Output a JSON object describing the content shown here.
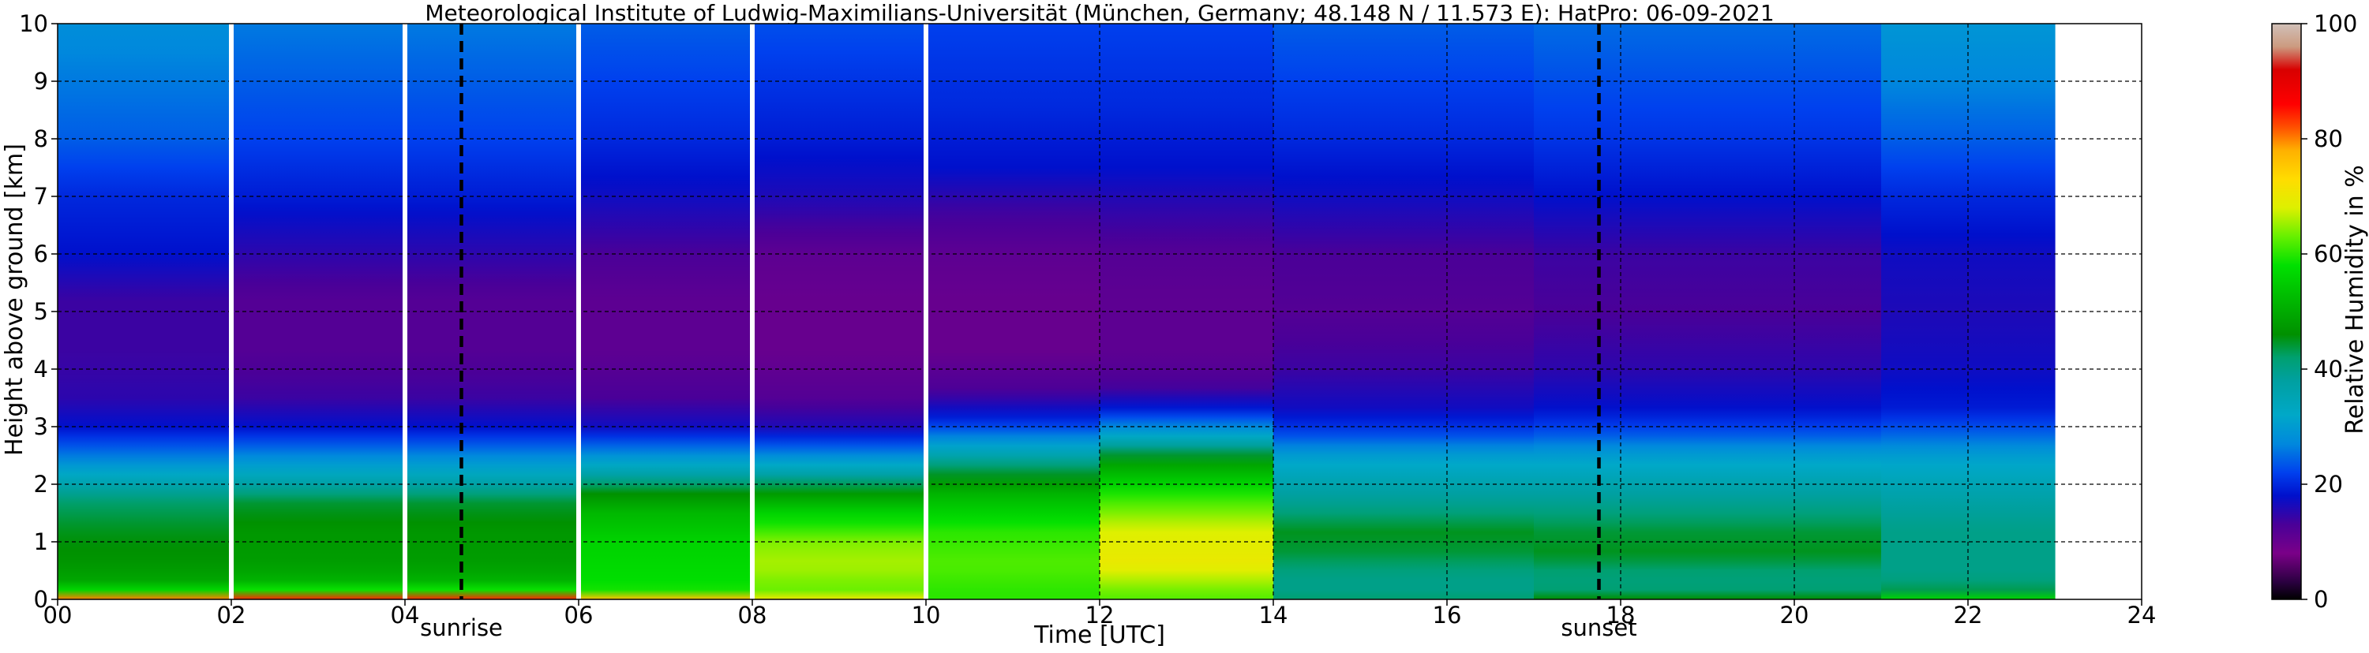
{
  "chart_data": {
    "type": "heatmap",
    "title": "Meteorological Institute of Ludwig-Maximilians-Universität (München, Germany; 48.148 N / 11.573 E):    HatPro: 06-09-2021",
    "xlabel": "Time [UTC]",
    "ylabel": "Height above ground [km]",
    "xlim": [
      0,
      24
    ],
    "ylim": [
      0,
      10
    ],
    "x_ticks": [
      {
        "value": 0,
        "label": "00"
      },
      {
        "value": 2,
        "label": "02"
      },
      {
        "value": 4,
        "label": "04"
      },
      {
        "value": 6,
        "label": "06"
      },
      {
        "value": 8,
        "label": "08"
      },
      {
        "value": 10,
        "label": "10"
      },
      {
        "value": 12,
        "label": "12"
      },
      {
        "value": 14,
        "label": "14"
      },
      {
        "value": 16,
        "label": "16"
      },
      {
        "value": 18,
        "label": "18"
      },
      {
        "value": 20,
        "label": "20"
      },
      {
        "value": 22,
        "label": "22"
      },
      {
        "value": 24,
        "label": "24"
      }
    ],
    "y_ticks": [
      {
        "value": 0,
        "label": "0"
      },
      {
        "value": 1,
        "label": "1"
      },
      {
        "value": 2,
        "label": "2"
      },
      {
        "value": 3,
        "label": "3"
      },
      {
        "value": 4,
        "label": "4"
      },
      {
        "value": 5,
        "label": "5"
      },
      {
        "value": 6,
        "label": "6"
      },
      {
        "value": 7,
        "label": "7"
      },
      {
        "value": 8,
        "label": "8"
      },
      {
        "value": 9,
        "label": "9"
      },
      {
        "value": 10,
        "label": "10"
      }
    ],
    "grid": true,
    "data_end_time": 23.0,
    "data_gaps": [
      2.0,
      4.0,
      6.0,
      8.0,
      10.0
    ],
    "events": [
      {
        "label": "sunrise",
        "time": 4.65
      },
      {
        "label": "sunset",
        "time": 17.75
      }
    ],
    "humidity_profiles": [
      {
        "t0": 0.0,
        "t1": 2.0,
        "height": [
          0,
          0.05,
          0.12,
          0.25,
          0.6,
          1.2,
          1.7,
          2.1,
          2.5,
          3.0,
          3.5,
          4.3,
          5.2,
          6.0,
          7.0,
          8.0,
          9.0,
          10.0
        ],
        "rh": [
          80,
          68,
          60,
          50,
          47,
          45,
          42,
          34,
          26,
          18,
          15,
          14,
          14,
          18,
          20,
          24,
          26,
          28
        ]
      },
      {
        "t0": 2.0,
        "t1": 6.0,
        "height": [
          0,
          0.05,
          0.12,
          0.25,
          0.6,
          1.2,
          1.7,
          2.1,
          2.5,
          3.0,
          3.5,
          4.3,
          5.2,
          6.0,
          7.0,
          8.0,
          9.0,
          10.0
        ],
        "rh": [
          84,
          72,
          62,
          52,
          48,
          47,
          44,
          35,
          27,
          18,
          14,
          12,
          12,
          15,
          19,
          22,
          24,
          26
        ]
      },
      {
        "t0": 6.0,
        "t1": 8.0,
        "height": [
          0,
          0.05,
          0.2,
          0.6,
          1.0,
          1.5,
          1.9,
          2.2,
          2.6,
          3.0,
          3.5,
          4.3,
          5.2,
          6.0,
          7.0,
          8.0,
          9.0,
          10.0
        ],
        "rh": [
          76,
          62,
          58,
          57,
          56,
          52,
          45,
          36,
          26,
          17,
          13,
          11,
          11,
          13,
          17,
          20,
          22,
          24
        ]
      },
      {
        "t0": 8.0,
        "t1": 10.0,
        "height": [
          0,
          0.05,
          0.2,
          0.6,
          1.0,
          1.5,
          1.9,
          2.2,
          2.6,
          3.0,
          3.5,
          4.3,
          5.2,
          6.0,
          7.0,
          8.0,
          9.0,
          10.0
        ],
        "rh": [
          70,
          64,
          63,
          66,
          64,
          56,
          46,
          36,
          25,
          16,
          12,
          10,
          10,
          11,
          16,
          19,
          21,
          23
        ]
      },
      {
        "t0": 10.0,
        "t1": 12.0,
        "height": [
          0,
          0.1,
          0.6,
          1.2,
          1.8,
          2.3,
          2.7,
          3.1,
          3.6,
          4.3,
          5.2,
          6.0,
          6.8,
          7.5,
          8.5,
          10.0
        ],
        "rh": [
          60,
          60,
          62,
          60,
          52,
          42,
          30,
          20,
          13,
          10,
          10,
          11,
          14,
          18,
          20,
          22
        ]
      },
      {
        "t0": 12.0,
        "t1": 14.0,
        "height": [
          0,
          0.2,
          0.6,
          1.2,
          1.8,
          2.4,
          2.9,
          3.3,
          3.7,
          4.3,
          5.2,
          6.0,
          6.8,
          7.5,
          8.5,
          10.0
        ],
        "rh": [
          62,
          64,
          70,
          68,
          60,
          48,
          30,
          19,
          13,
          11,
          11,
          12,
          15,
          18,
          20,
          22
        ]
      },
      {
        "t0": 14.0,
        "t1": 17.0,
        "height": [
          0,
          0.1,
          0.4,
          0.8,
          1.2,
          1.6,
          2.0,
          2.5,
          2.9,
          3.3,
          4.0,
          5.0,
          6.0,
          7.0,
          8.0,
          9.0,
          10.0
        ],
        "rh": [
          42,
          40,
          40,
          44,
          45,
          40,
          36,
          30,
          22,
          17,
          14,
          12,
          13,
          17,
          20,
          22,
          24
        ]
      },
      {
        "t0": 17.0,
        "t1": 21.0,
        "height": [
          0,
          0.1,
          0.4,
          0.8,
          1.2,
          1.6,
          2.0,
          2.5,
          2.9,
          3.3,
          4.0,
          5.0,
          6.0,
          7.0,
          8.0,
          9.0,
          10.0
        ],
        "rh": [
          46,
          42,
          41,
          45,
          44,
          40,
          36,
          30,
          23,
          18,
          15,
          13,
          14,
          18,
          21,
          23,
          25
        ]
      },
      {
        "t0": 21.0,
        "t1": 23.0,
        "height": [
          0,
          0.1,
          0.4,
          0.8,
          1.2,
          1.6,
          2.0,
          2.5,
          2.9,
          3.3,
          4.0,
          5.0,
          6.0,
          7.0,
          8.0,
          9.0,
          10.0
        ],
        "rh": [
          56,
          44,
          40,
          40,
          40,
          38,
          35,
          30,
          24,
          19,
          17,
          16,
          17,
          20,
          24,
          27,
          29
        ]
      }
    ],
    "colorbar": {
      "label": "Relative Humidity in %",
      "range": [
        0,
        100
      ],
      "ticks": [
        {
          "value": 0,
          "label": "0"
        },
        {
          "value": 20,
          "label": "20"
        },
        {
          "value": 40,
          "label": "40"
        },
        {
          "value": 60,
          "label": "60"
        },
        {
          "value": 80,
          "label": "80"
        },
        {
          "value": 100,
          "label": "100"
        }
      ],
      "stops": [
        {
          "value": 0,
          "color": "#000000"
        },
        {
          "value": 3,
          "color": "#2a0040"
        },
        {
          "value": 8,
          "color": "#7a0088"
        },
        {
          "value": 13,
          "color": "#4a0098"
        },
        {
          "value": 18,
          "color": "#0010cc"
        },
        {
          "value": 22,
          "color": "#0040ee"
        },
        {
          "value": 27,
          "color": "#0088dd"
        },
        {
          "value": 32,
          "color": "#00a8c8"
        },
        {
          "value": 38,
          "color": "#00a0a0"
        },
        {
          "value": 42,
          "color": "#00a070"
        },
        {
          "value": 46,
          "color": "#009000"
        },
        {
          "value": 52,
          "color": "#00b800"
        },
        {
          "value": 58,
          "color": "#00e000"
        },
        {
          "value": 63,
          "color": "#66f000"
        },
        {
          "value": 68,
          "color": "#ddf000"
        },
        {
          "value": 73,
          "color": "#ffdc00"
        },
        {
          "value": 78,
          "color": "#ffb000"
        },
        {
          "value": 82,
          "color": "#ff5000"
        },
        {
          "value": 86,
          "color": "#ff0000"
        },
        {
          "value": 92,
          "color": "#d80000"
        },
        {
          "value": 96,
          "color": "#cc9b80"
        },
        {
          "value": 100,
          "color": "#d0c0b8"
        }
      ]
    }
  }
}
